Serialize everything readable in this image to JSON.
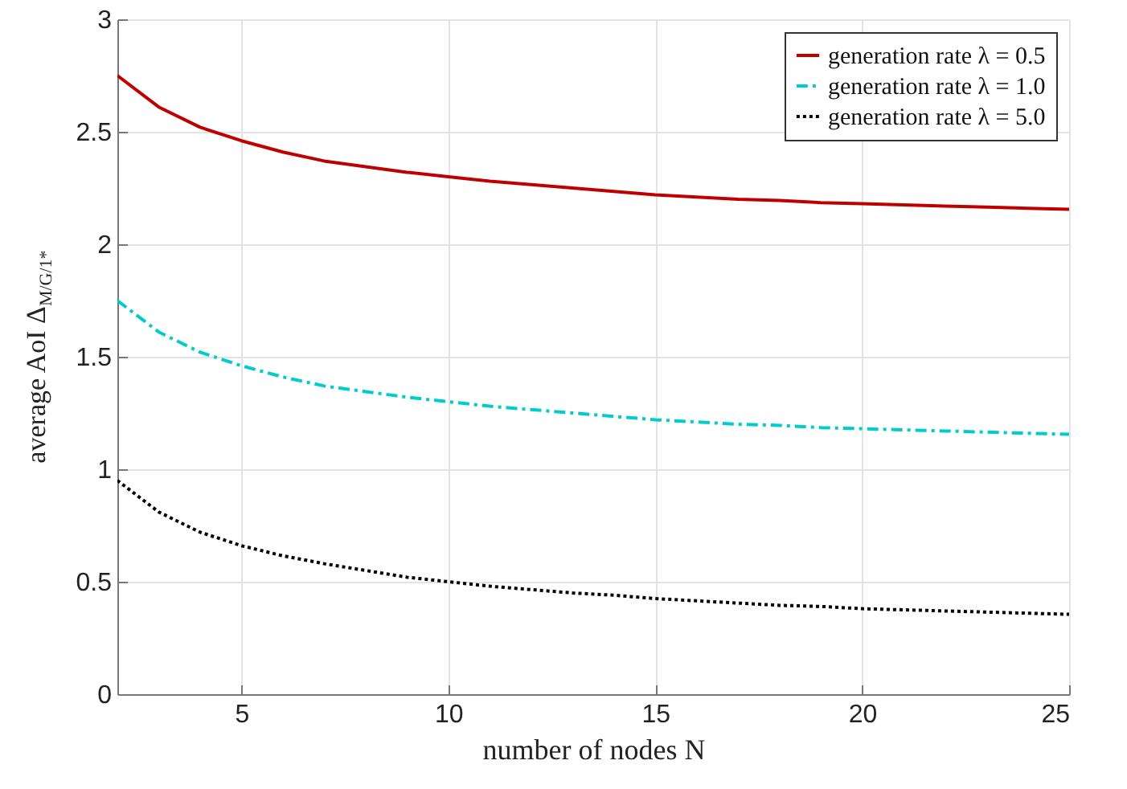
{
  "chart_data": {
    "type": "line",
    "xlabel": "number of nodes N",
    "ylabel": "average AoI Δ$_{M/G/1*}$",
    "x": [
      2,
      3,
      4,
      5,
      6,
      7,
      8,
      9,
      10,
      11,
      12,
      13,
      14,
      15,
      16,
      17,
      18,
      19,
      20,
      21,
      22,
      23,
      24,
      25
    ],
    "series": [
      {
        "name": "generation rate λ = 0.5",
        "color": "#c00000",
        "line_style": "solid",
        "values": [
          2.75,
          2.61,
          2.52,
          2.46,
          2.41,
          2.37,
          2.345,
          2.32,
          2.3,
          2.28,
          2.265,
          2.25,
          2.235,
          2.22,
          2.21,
          2.2,
          2.195,
          2.185,
          2.18,
          2.175,
          2.17,
          2.165,
          2.16,
          2.155
        ]
      },
      {
        "name": "generation rate λ = 1.0",
        "color": "#00cccc",
        "line_style": "dashed",
        "values": [
          1.75,
          1.61,
          1.52,
          1.46,
          1.41,
          1.37,
          1.345,
          1.32,
          1.3,
          1.28,
          1.265,
          1.25,
          1.235,
          1.22,
          1.21,
          1.2,
          1.195,
          1.185,
          1.18,
          1.175,
          1.17,
          1.165,
          1.16,
          1.155
        ]
      },
      {
        "name": "generation rate λ = 5.0",
        "color": "#000000",
        "line_style": "dotted",
        "values": [
          0.95,
          0.81,
          0.72,
          0.66,
          0.615,
          0.58,
          0.55,
          0.52,
          0.5,
          0.48,
          0.465,
          0.45,
          0.44,
          0.425,
          0.415,
          0.405,
          0.395,
          0.39,
          0.38,
          0.375,
          0.37,
          0.365,
          0.36,
          0.355
        ]
      }
    ],
    "xlim": [
      2,
      25
    ],
    "xticks": [
      5,
      10,
      15,
      20,
      25
    ],
    "ylim": [
      0,
      3
    ],
    "yticks": [
      0,
      0.5,
      1,
      1.5,
      2,
      2.5,
      3
    ],
    "grid": true,
    "legend": "top right"
  }
}
